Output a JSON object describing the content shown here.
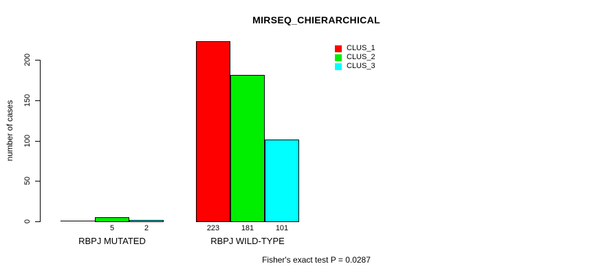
{
  "chart_data": {
    "type": "bar",
    "title": "MIRSEQ_CHIERARCHICAL",
    "ylabel": "number of cases",
    "ylim": [
      0,
      230
    ],
    "yticks": [
      0,
      50,
      100,
      150,
      200
    ],
    "grid": false,
    "legend_position": "top-right-inside",
    "categories": [
      "RBPJ MUTATED",
      "RBPJ WILD-TYPE"
    ],
    "series": [
      {
        "name": "CLUS_1",
        "color": "#FF0000",
        "values": [
          0,
          223
        ]
      },
      {
        "name": "CLUS_2",
        "color": "#00EE00",
        "values": [
          5,
          181
        ]
      },
      {
        "name": "CLUS_3",
        "color": "#00FFFF",
        "values": [
          2,
          101
        ]
      }
    ],
    "bar_labels": [
      [
        "",
        "5",
        "2"
      ],
      [
        "223",
        "181",
        "101"
      ]
    ],
    "annotation": "Fisher's exact test P = 0.0287"
  }
}
